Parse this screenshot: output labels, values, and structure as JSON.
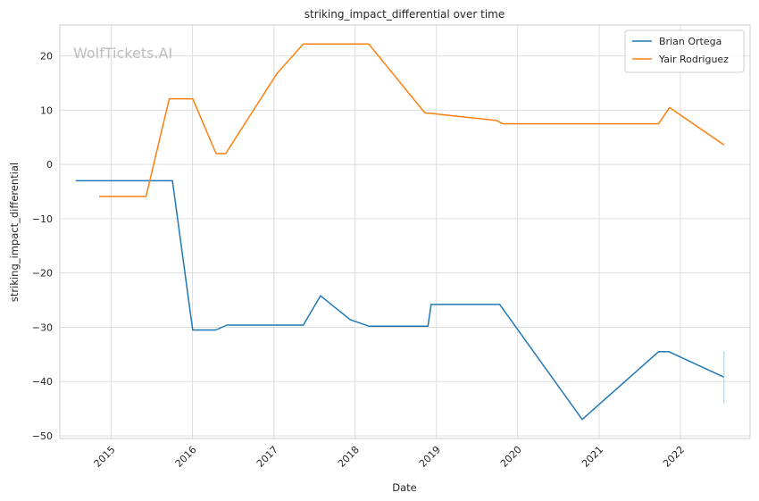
{
  "watermark": "WolfTickets.AI",
  "chart_data": {
    "type": "line",
    "title": "striking_impact_differential over time",
    "xlabel": "Date",
    "ylabel": "striking_impact_differential",
    "x_type": "date",
    "xlim": [
      "2014-05-15",
      "2022-11-10"
    ],
    "ylim": [
      -50.5,
      25.7
    ],
    "x_ticks": [
      "2015-01-01",
      "2016-01-01",
      "2017-01-01",
      "2018-01-01",
      "2019-01-01",
      "2020-01-01",
      "2021-01-01",
      "2022-01-01"
    ],
    "x_tick_labels": [
      "2015",
      "2016",
      "2017",
      "2018",
      "2019",
      "2020",
      "2021",
      "2022"
    ],
    "y_ticks": [
      -50,
      -40,
      -30,
      -20,
      -10,
      0,
      10,
      20
    ],
    "y_tick_labels": [
      "−50",
      "−40",
      "−30",
      "−20",
      "−10",
      "0",
      "10",
      "20"
    ],
    "grid": true,
    "legend_position": "top-right",
    "series": [
      {
        "name": "Brian Ortega",
        "color": "#1f77b4",
        "points": [
          [
            "2014-07-26",
            -3.0
          ],
          [
            "2015-10-03",
            -3.0
          ],
          [
            "2016-01-02",
            -30.5
          ],
          [
            "2016-04-15",
            -30.5
          ],
          [
            "2016-06-04",
            -29.6
          ],
          [
            "2017-05-13",
            -29.6
          ],
          [
            "2017-07-29",
            -24.2
          ],
          [
            "2017-12-09",
            -28.6
          ],
          [
            "2018-03-03",
            -29.8
          ],
          [
            "2018-11-24",
            -29.8
          ],
          [
            "2018-12-08",
            -25.8
          ],
          [
            "2019-10-12",
            -25.8
          ],
          [
            "2020-10-17",
            -47.0
          ],
          [
            "2021-09-25",
            -34.5
          ],
          [
            "2021-11-10",
            -34.5
          ],
          [
            "2022-07-16",
            -39.2
          ]
        ]
      },
      {
        "name": "Yair Rodriguez",
        "color": "#ff7f0e",
        "points": [
          [
            "2014-11-08",
            -5.9
          ],
          [
            "2015-06-06",
            -5.9
          ],
          [
            "2015-09-19",
            12.1
          ],
          [
            "2016-01-02",
            12.1
          ],
          [
            "2016-04-16",
            2.0
          ],
          [
            "2016-05-29",
            2.0
          ],
          [
            "2017-01-15",
            16.8
          ],
          [
            "2017-05-13",
            22.2
          ],
          [
            "2018-03-03",
            22.2
          ],
          [
            "2018-11-10",
            9.5
          ],
          [
            "2018-12-08",
            9.4
          ],
          [
            "2019-09-28",
            8.1
          ],
          [
            "2019-10-26",
            7.5
          ],
          [
            "2021-09-25",
            7.5
          ],
          [
            "2021-11-13",
            10.5
          ],
          [
            "2022-07-16",
            3.6
          ]
        ]
      }
    ]
  }
}
